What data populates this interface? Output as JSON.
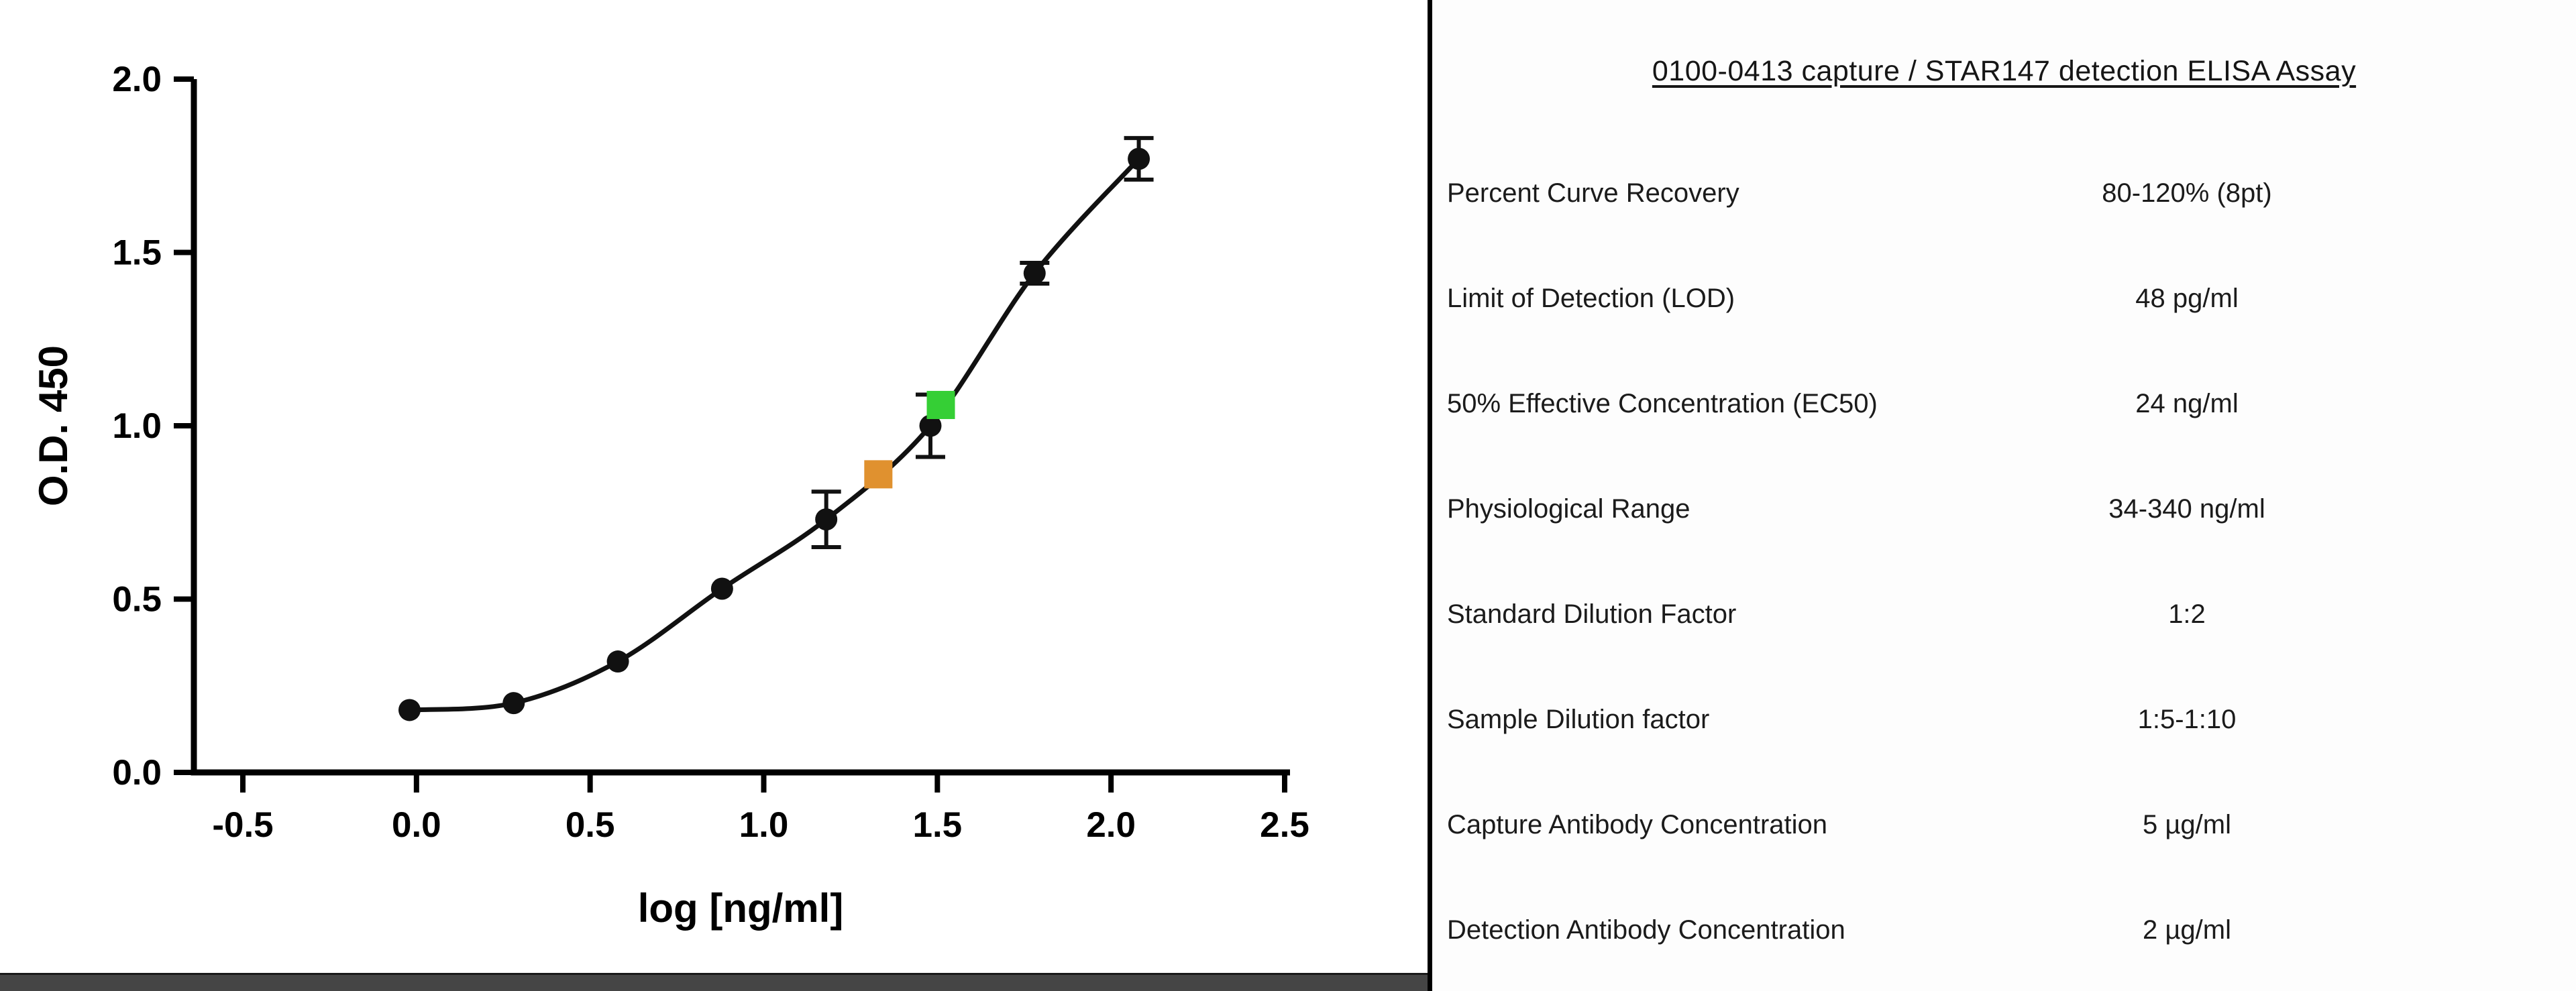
{
  "chart_data": {
    "type": "scatter",
    "title": "",
    "xlabel": "log [ng/ml]",
    "ylabel": "O.D. 450",
    "xlim": [
      -0.5,
      2.5
    ],
    "ylim": [
      0,
      2
    ],
    "xticks": [
      -0.5,
      0.0,
      0.5,
      1.0,
      1.5,
      2.0,
      2.5
    ],
    "yticks": [
      0.0,
      0.5,
      1.0,
      1.5,
      2.0
    ],
    "xtick_labels": [
      "-0.5",
      "0.0",
      "0.5",
      "1.0",
      "1.5",
      "2.0",
      "2.5"
    ],
    "ytick_labels": [
      "0.0",
      "0.5",
      "1.0",
      "1.5",
      "2.0"
    ],
    "grid": false,
    "legend": "none",
    "series": [
      {
        "name": "standard-curve-points",
        "marker": "circle",
        "color": "#111111",
        "points": [
          {
            "x": -0.02,
            "y": 0.18,
            "err": 0
          },
          {
            "x": 0.28,
            "y": 0.2,
            "err": 0
          },
          {
            "x": 0.58,
            "y": 0.32,
            "err": 0
          },
          {
            "x": 0.88,
            "y": 0.53,
            "err": 0
          },
          {
            "x": 1.18,
            "y": 0.73,
            "err": 0.08
          },
          {
            "x": 1.48,
            "y": 1.0,
            "err": 0.09
          },
          {
            "x": 1.78,
            "y": 1.44,
            "err": 0.03
          },
          {
            "x": 2.08,
            "y": 1.77,
            "err": 0.06
          }
        ]
      },
      {
        "name": "sample-marker-orange",
        "marker": "square",
        "color": "#e0912f",
        "points": [
          {
            "x": 1.33,
            "y": 0.86,
            "err": 0
          }
        ]
      },
      {
        "name": "sample-marker-green",
        "marker": "square",
        "color": "#35cf35",
        "points": [
          {
            "x": 1.51,
            "y": 1.06,
            "err": 0
          }
        ]
      }
    ]
  },
  "table": {
    "title": "0100-0413 capture / STAR147 detection ELISA Assay",
    "rows": [
      {
        "label": "Percent Curve Recovery",
        "value": "80-120% (8pt)"
      },
      {
        "label": "Limit of Detection (LOD)",
        "value": "48 pg/ml"
      },
      {
        "label": "50% Effective Concentration (EC50)",
        "value": "24 ng/ml"
      },
      {
        "label": "Physiological Range",
        "value": "34-340 ng/ml"
      },
      {
        "label": "Standard Dilution Factor",
        "value": "1:2"
      },
      {
        "label": "Sample Dilution factor",
        "value": "1:5-1:10"
      },
      {
        "label": "Capture Antibody Concentration",
        "value": "5 µg/ml"
      },
      {
        "label": "Detection Antibody Concentration",
        "value": "2 µg/ml"
      }
    ]
  }
}
